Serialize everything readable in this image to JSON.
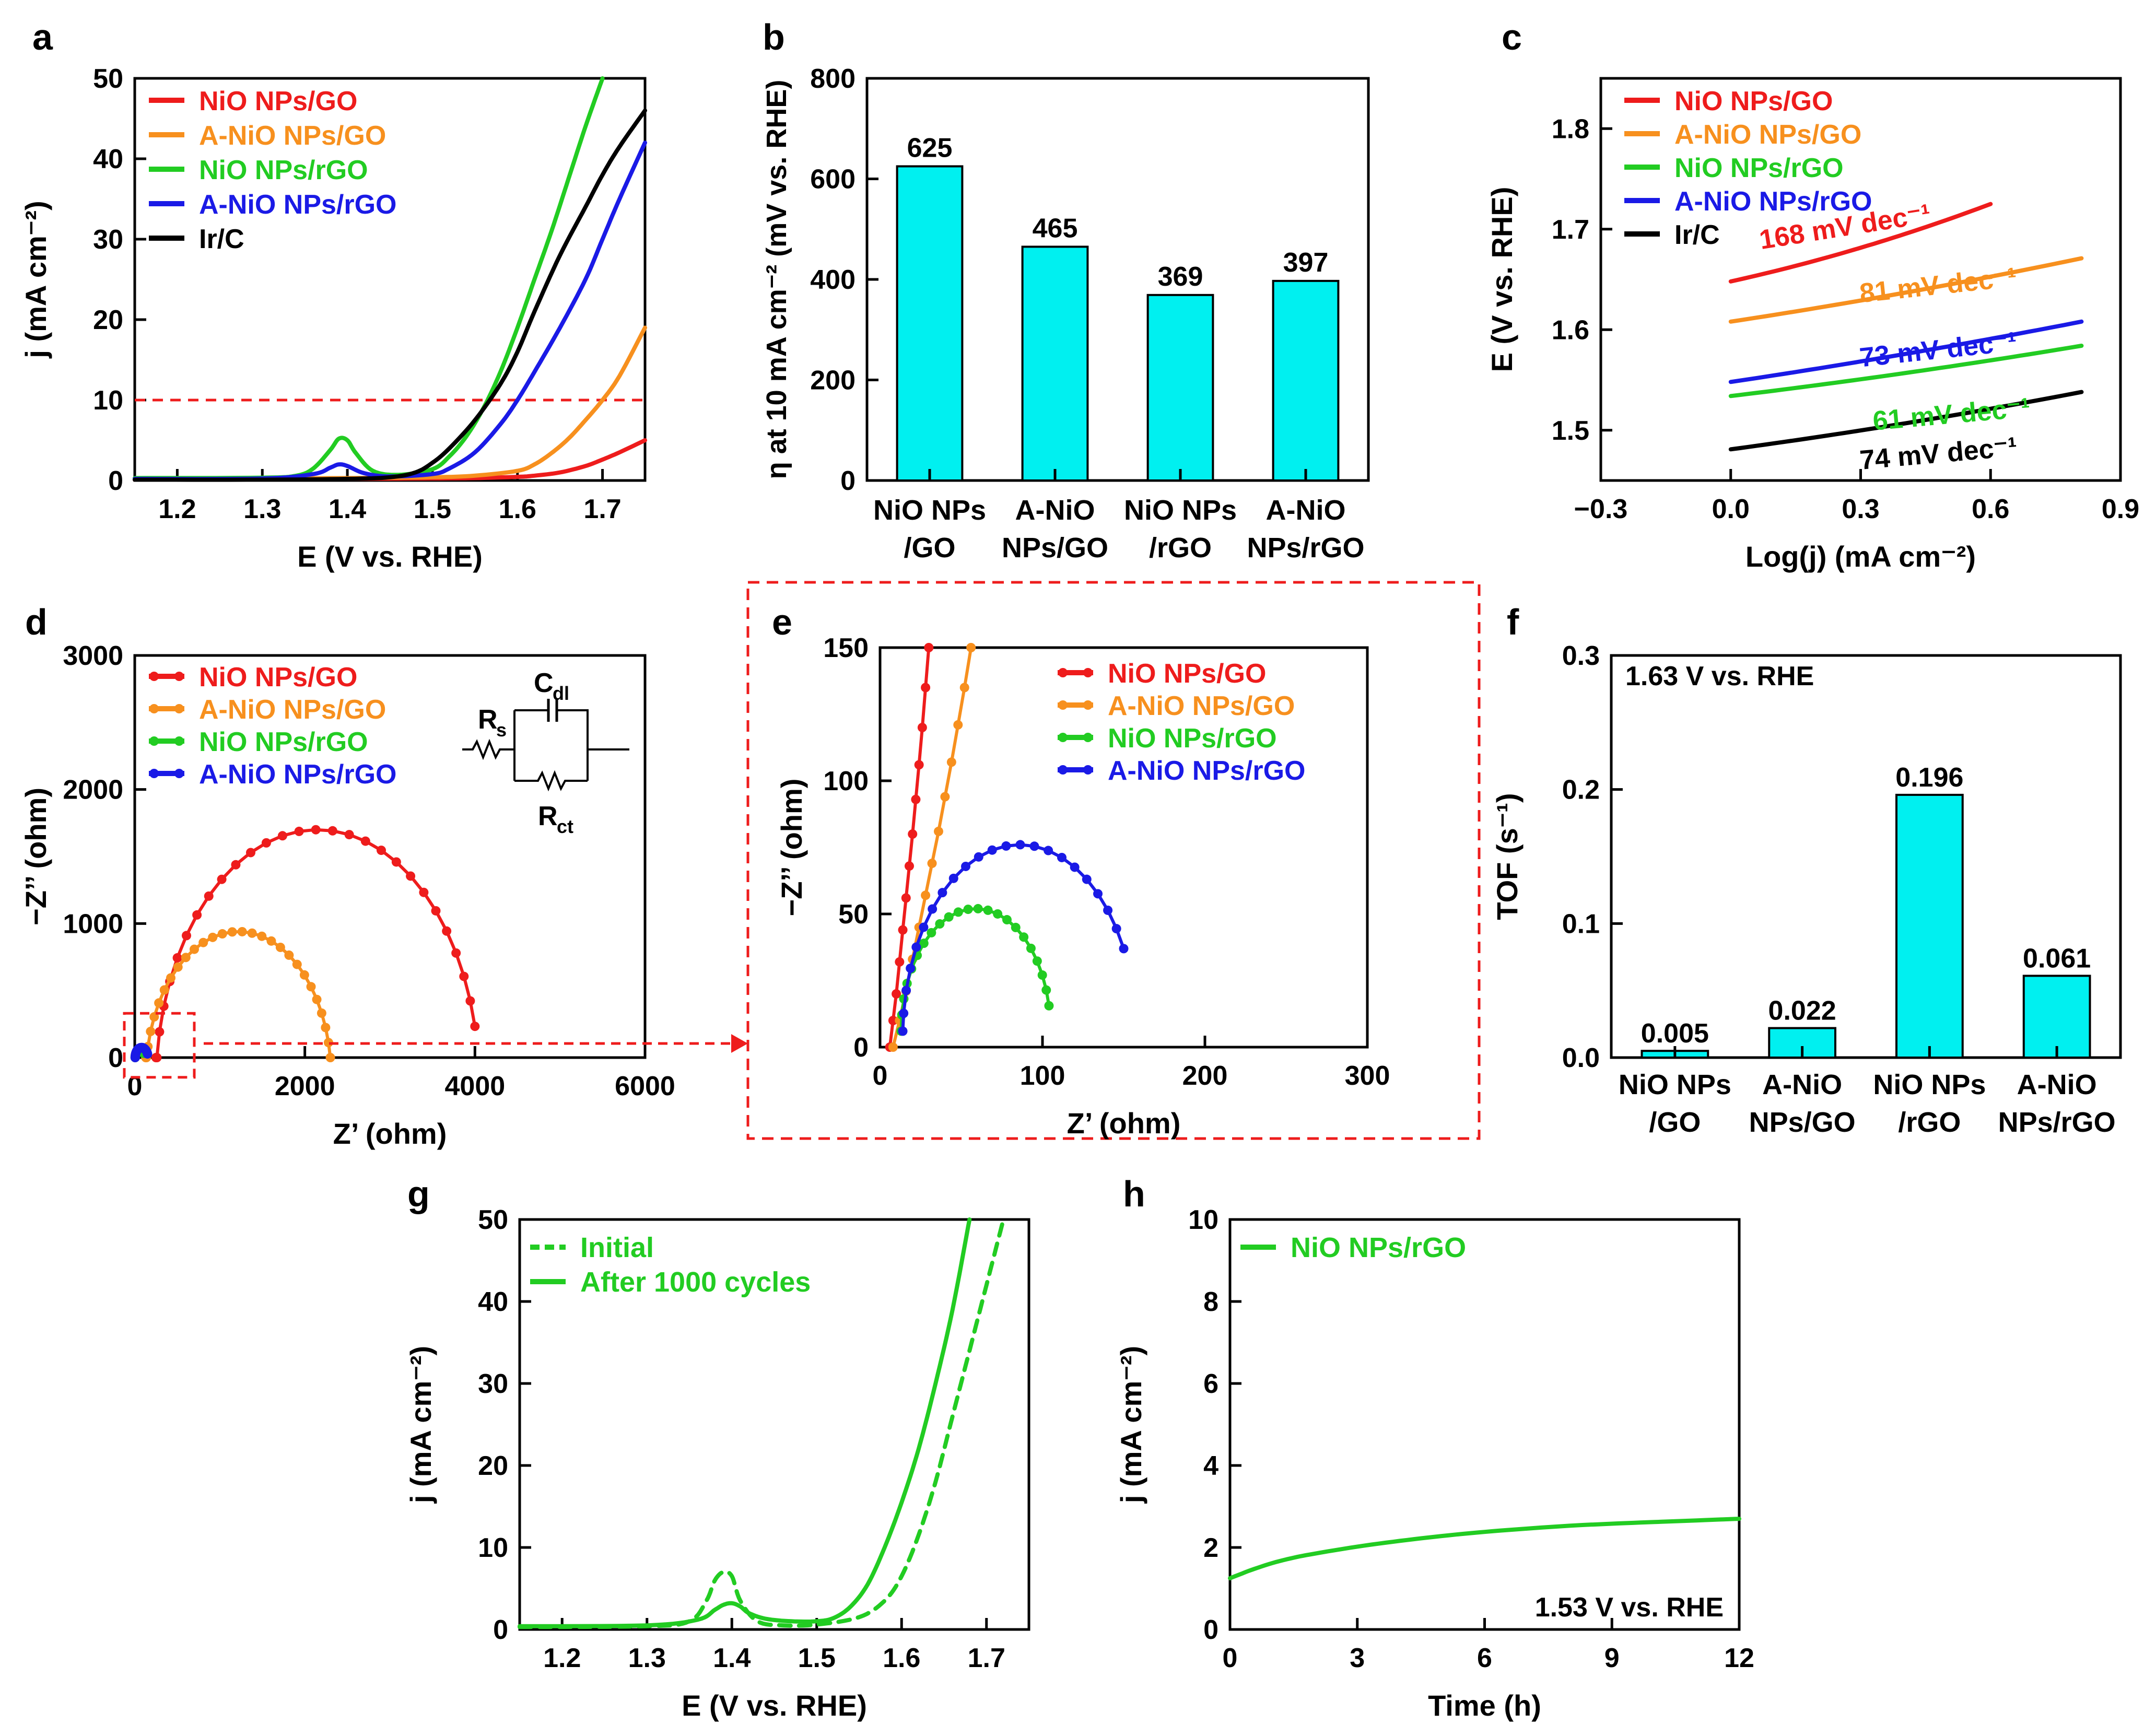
{
  "colors": {
    "nio_go": "#ee1c1c",
    "anio_go": "#f7901e",
    "nio_rgo": "#22cc22",
    "anio_rgo": "#1a1ae6",
    "irc": "#000000",
    "bar_fill": "#00f0f0",
    "ref_dash": "#ee1c1c"
  },
  "chart_data": [
    {
      "panel": "a",
      "type": "line",
      "xlabel": "E (V vs. RHE)",
      "ylabel": "j (mA cm⁻²)",
      "xlim": [
        1.15,
        1.75
      ],
      "ylim": [
        0,
        50
      ],
      "xticks": [
        "1.2",
        "1.3",
        "1.4",
        "1.5",
        "1.6",
        "1.7"
      ],
      "yticks": [
        "0",
        "10",
        "20",
        "30",
        "40",
        "50"
      ],
      "reference_line": {
        "y": 10,
        "style": "dashed",
        "color": "red"
      },
      "legend": [
        "NiO NPs/GO",
        "A-NiO NPs/GO",
        "NiO NPs/rGO",
        "A-NiO NPs/rGO",
        "Ir/C"
      ],
      "series": [
        {
          "name": "NiO NPs/GO",
          "x": [
            1.15,
            1.2,
            1.3,
            1.4,
            1.5,
            1.55,
            1.6,
            1.62,
            1.65,
            1.68,
            1.7,
            1.72,
            1.75
          ],
          "y": [
            0.1,
            0.1,
            0.15,
            0.2,
            0.25,
            0.3,
            0.45,
            0.6,
            1.0,
            1.8,
            2.6,
            3.5,
            5.0
          ]
        },
        {
          "name": "A-NiO NPs/GO",
          "x": [
            1.15,
            1.3,
            1.4,
            1.5,
            1.55,
            1.6,
            1.62,
            1.64,
            1.66,
            1.68,
            1.7,
            1.72,
            1.75
          ],
          "y": [
            0.2,
            0.25,
            0.3,
            0.4,
            0.6,
            1.2,
            2.0,
            3.4,
            5.2,
            7.5,
            10.0,
            13.0,
            19.0
          ]
        },
        {
          "name": "NiO NPs/rGO",
          "x": [
            1.15,
            1.3,
            1.34,
            1.36,
            1.38,
            1.39,
            1.4,
            1.41,
            1.43,
            1.46,
            1.5,
            1.52,
            1.54,
            1.56,
            1.58,
            1.6,
            1.62,
            1.64,
            1.66,
            1.68,
            1.7
          ],
          "y": [
            0.3,
            0.35,
            0.6,
            1.5,
            3.8,
            5.2,
            5.0,
            3.4,
            1.2,
            0.7,
            1.4,
            3.0,
            5.5,
            9.0,
            13.5,
            19.0,
            25.0,
            31.0,
            37.5,
            44.0,
            50.0
          ]
        },
        {
          "name": "A-NiO NPs/rGO",
          "x": [
            1.15,
            1.3,
            1.36,
            1.38,
            1.39,
            1.4,
            1.42,
            1.45,
            1.5,
            1.52,
            1.55,
            1.58,
            1.6,
            1.62,
            1.65,
            1.68,
            1.7,
            1.72,
            1.75
          ],
          "y": [
            0.2,
            0.25,
            0.8,
            1.6,
            2.0,
            1.8,
            0.9,
            0.5,
            0.8,
            1.5,
            3.5,
            7.0,
            10.0,
            13.5,
            19.0,
            25.0,
            30.0,
            35.0,
            42.0
          ]
        },
        {
          "name": "Ir/C",
          "x": [
            1.15,
            1.3,
            1.4,
            1.45,
            1.48,
            1.5,
            1.52,
            1.55,
            1.58,
            1.6,
            1.62,
            1.65,
            1.68,
            1.7,
            1.72,
            1.75
          ],
          "y": [
            0.1,
            0.1,
            0.2,
            0.4,
            1.0,
            2.2,
            4.0,
            7.5,
            12.0,
            16.0,
            21.0,
            28.0,
            34.0,
            38.0,
            41.5,
            46.0
          ]
        }
      ]
    },
    {
      "panel": "b",
      "type": "bar",
      "ylabel": "η at 10 mA cm⁻² (mV vs. RHE)",
      "ylim": [
        0,
        800
      ],
      "yticks": [
        "0",
        "200",
        "400",
        "600",
        "800"
      ],
      "categories": [
        "NiO NPs/GO",
        "A-NiO NPs/GO",
        "NiO NPs/rGO",
        "A-NiO NPs/rGO"
      ],
      "category_lines": [
        [
          "NiO NPs",
          "/GO"
        ],
        [
          "A-NiO",
          "NPs/GO"
        ],
        [
          "NiO NPs",
          "/rGO"
        ],
        [
          "A-NiO",
          "NPs/rGO"
        ]
      ],
      "values": [
        625,
        465,
        369,
        397
      ],
      "value_labels": [
        "625",
        "465",
        "369",
        "397"
      ]
    },
    {
      "panel": "c",
      "type": "line",
      "xlabel": "Log(j) (mA cm⁻²)",
      "ylabel": "E (V vs. RHE)",
      "xlim": [
        -0.3,
        0.9
      ],
      "ylim": [
        1.45,
        1.85
      ],
      "xticks": [
        "−0.3",
        "0.0",
        "0.3",
        "0.6",
        "0.9"
      ],
      "yticks": [
        "1.5",
        "1.6",
        "1.7",
        "1.8"
      ],
      "legend": [
        "NiO NPs/GO",
        "A-NiO NPs/GO",
        "NiO NPs/rGO",
        "A-NiO NPs/rGO",
        "Ir/C"
      ],
      "annotations": [
        "168 mV dec⁻¹",
        "81 mV dec⁻¹",
        "73 mV dec⁻¹",
        "61 mV dec⁻¹",
        "74 mV dec⁻¹"
      ],
      "series": [
        {
          "name": "NiO NPs/GO",
          "x": [
            0.0,
            0.6
          ],
          "y": [
            1.648,
            1.725
          ],
          "curve": 0.02
        },
        {
          "name": "A-NiO NPs/GO",
          "x": [
            0.0,
            0.81
          ],
          "y": [
            1.608,
            1.671
          ],
          "curve": 0.01
        },
        {
          "name": "NiO NPs/rGO",
          "x": [
            0.0,
            0.81
          ],
          "y": [
            1.534,
            1.584
          ],
          "curve": 0.008
        },
        {
          "name": "A-NiO NPs/rGO",
          "x": [
            0.0,
            0.81
          ],
          "y": [
            1.548,
            1.608
          ],
          "curve": 0.008
        },
        {
          "name": "Ir/C",
          "x": [
            0.0,
            0.81
          ],
          "y": [
            1.481,
            1.538
          ],
          "curve": 0.01
        }
      ]
    },
    {
      "panel": "d",
      "type": "scatter",
      "xlabel": "Z’ (ohm)",
      "ylabel": "−Z’’ (ohm)",
      "xlim": [
        0,
        6000
      ],
      "ylim": [
        0,
        3000
      ],
      "xticks": [
        "0",
        "2000",
        "4000",
        "6000"
      ],
      "yticks": [
        "0",
        "1000",
        "2000",
        "3000"
      ],
      "legend": [
        "NiO NPs/GO",
        "A-NiO NPs/GO",
        "NiO NPs/rGO",
        "A-NiO NPs/rGO"
      ],
      "inset_labels": [
        "C",
        "dl",
        "R",
        "s",
        "R",
        "ct"
      ],
      "series": [
        {
          "name": "NiO NPs/GO",
          "arc": {
            "cx": 2150,
            "cy": -200,
            "r": 1900,
            "x0": 20,
            "x1": 4000
          }
        },
        {
          "name": "A-NiO NPs/GO",
          "arc": {
            "cx": 1220,
            "cy": -150,
            "r": 1090,
            "x0": 20,
            "x1": 2300
          }
        },
        {
          "name": "NiO NPs/rGO",
          "arc": {
            "cx": 60,
            "cy": 0,
            "r": 55,
            "x0": 5,
            "x1": 105
          }
        },
        {
          "name": "A-NiO NPs/rGO",
          "arc": {
            "cx": 80,
            "cy": 0,
            "r": 75,
            "x0": 5,
            "x1": 150
          }
        }
      ]
    },
    {
      "panel": "e",
      "type": "scatter",
      "xlabel": "Z’ (ohm)",
      "ylabel": "−Z’’ (ohm)",
      "xlim": [
        0,
        300
      ],
      "ylim": [
        0,
        150
      ],
      "xticks": [
        "0",
        "100",
        "200",
        "300"
      ],
      "yticks": [
        "0",
        "50",
        "100",
        "150"
      ],
      "legend": [
        "NiO NPs/GO",
        "A-NiO NPs/GO",
        "NiO NPs/rGO",
        "A-NiO NPs/rGO"
      ],
      "series": [
        {
          "name": "NiO NPs/GO",
          "x": [
            6,
            8,
            10,
            12,
            14,
            16,
            18,
            20,
            22,
            24,
            26,
            28,
            30
          ],
          "y": [
            0,
            10,
            20,
            32,
            44,
            56,
            68,
            80,
            93,
            106,
            120,
            135,
            150
          ]
        },
        {
          "name": "A-NiO NPs/GO",
          "x": [
            8,
            12,
            16,
            20,
            24,
            28,
            32,
            36,
            40,
            44,
            48,
            52,
            56
          ],
          "y": [
            0,
            10,
            21,
            33,
            45,
            57,
            69,
            81,
            94,
            107,
            121,
            135,
            150
          ]
        },
        {
          "name": "NiO NPs/rGO",
          "arc": {
            "cx": 59,
            "cy": 6,
            "r": 46,
            "x0": 10,
            "x1": 104,
            "min_y": 1
          }
        },
        {
          "name": "A-NiO NPs/rGO",
          "arc": {
            "cx": 86,
            "cy": 4,
            "r": 72,
            "x0": 10,
            "x1": 150,
            "min_y": 6
          }
        }
      ]
    },
    {
      "panel": "f",
      "type": "bar",
      "ylabel": "TOF (s⁻¹)",
      "ylim": [
        0,
        0.3
      ],
      "yticks": [
        "0.0",
        "0.1",
        "0.2",
        "0.3"
      ],
      "annotation": "1.63 V vs. RHE",
      "categories": [
        "NiO NPs/GO",
        "A-NiO NPs/GO",
        "NiO NPs/rGO",
        "A-NiO NPs/rGO"
      ],
      "category_lines": [
        [
          "NiO NPs",
          "/GO"
        ],
        [
          "A-NiO",
          "NPs/GO"
        ],
        [
          "NiO NPs",
          "/rGO"
        ],
        [
          "A-NiO",
          "NPs/rGO"
        ]
      ],
      "values": [
        0.005,
        0.022,
        0.196,
        0.061
      ],
      "value_labels": [
        "0.005",
        "0.022",
        "0.196",
        "0.061"
      ]
    },
    {
      "panel": "g",
      "type": "line",
      "xlabel": "E (V vs. RHE)",
      "ylabel": "j (mA cm⁻²)",
      "xlim": [
        1.15,
        1.75
      ],
      "ylim": [
        0,
        50
      ],
      "xticks": [
        "1.2",
        "1.3",
        "1.4",
        "1.5",
        "1.6",
        "1.7"
      ],
      "yticks": [
        "0",
        "10",
        "20",
        "30",
        "40",
        "50"
      ],
      "legend": [
        "Initial",
        "After 1000 cycles"
      ],
      "series": [
        {
          "name": "Initial",
          "style": "dashed",
          "x": [
            1.15,
            1.3,
            1.35,
            1.37,
            1.38,
            1.39,
            1.4,
            1.41,
            1.43,
            1.46,
            1.5,
            1.55,
            1.58,
            1.6,
            1.62,
            1.64,
            1.66,
            1.68,
            1.7,
            1.72
          ],
          "y": [
            0.3,
            0.4,
            1.0,
            3.5,
            6.0,
            7.0,
            6.5,
            3.5,
            1.0,
            0.5,
            0.6,
            1.5,
            3.5,
            6.5,
            11.5,
            18.0,
            26.0,
            34.0,
            42.0,
            50.0
          ]
        },
        {
          "name": "After 1000 cycles",
          "style": "solid",
          "x": [
            1.15,
            1.3,
            1.36,
            1.38,
            1.39,
            1.4,
            1.41,
            1.42,
            1.44,
            1.47,
            1.5,
            1.52,
            1.54,
            1.56,
            1.58,
            1.6,
            1.62,
            1.64,
            1.66,
            1.68
          ],
          "y": [
            0.4,
            0.5,
            1.2,
            2.4,
            3.0,
            3.2,
            2.8,
            2.0,
            1.3,
            1.0,
            1.0,
            1.4,
            2.8,
            5.5,
            10.0,
            15.5,
            22.0,
            30.0,
            39.0,
            50.0
          ]
        }
      ]
    },
    {
      "panel": "h",
      "type": "line",
      "xlabel": "Time (h)",
      "ylabel": "j (mA cm⁻²)",
      "xlim": [
        0,
        12
      ],
      "ylim": [
        0,
        10
      ],
      "xticks": [
        "0",
        "3",
        "6",
        "9",
        "12"
      ],
      "yticks": [
        "0",
        "2",
        "4",
        "6",
        "8",
        "10"
      ],
      "legend": [
        "NiO NPs/rGO"
      ],
      "annotation": "1.53 V vs. RHE",
      "series": [
        {
          "name": "NiO NPs/rGO",
          "x": [
            0,
            0.25,
            0.5,
            1,
            1.5,
            2,
            3,
            4,
            5,
            6,
            7,
            8,
            9,
            10,
            11,
            12
          ],
          "y": [
            1.25,
            1.35,
            1.45,
            1.62,
            1.75,
            1.85,
            2.02,
            2.16,
            2.28,
            2.38,
            2.46,
            2.53,
            2.58,
            2.62,
            2.66,
            2.7
          ]
        }
      ]
    }
  ]
}
